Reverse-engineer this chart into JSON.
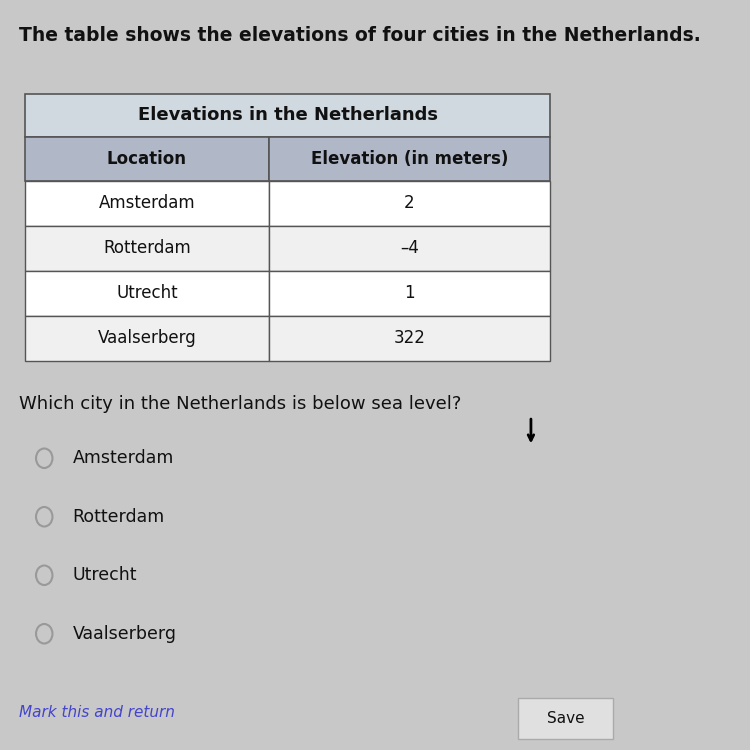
{
  "title_text": "The table shows the elevations of four cities in the Netherlands.",
  "table_title": "Elevations in the Netherlands",
  "col_headers": [
    "Location",
    "Elevation (in meters)"
  ],
  "rows": [
    [
      "Amsterdam",
      "2"
    ],
    [
      "Rotterdam",
      "–4"
    ],
    [
      "Utrecht",
      "1"
    ],
    [
      "Vaalserberg",
      "322"
    ]
  ],
  "question": "Which city in the Netherlands is below sea level?",
  "choices": [
    "Amsterdam",
    "Rotterdam",
    "Utrecht",
    "Vaalserberg"
  ],
  "bg_color": "#c8c8c8",
  "header_bg": "#b0b8c8",
  "table_title_bg": "#d0d8e0",
  "row_bg_odd": "#ffffff",
  "row_bg_even": "#f0f0f0",
  "border_color": "#555555",
  "text_color": "#111111",
  "link_color": "#4444cc",
  "save_btn_color": "#e0e0e0",
  "footer_link": "Mark this and return",
  "save_text": "Save"
}
